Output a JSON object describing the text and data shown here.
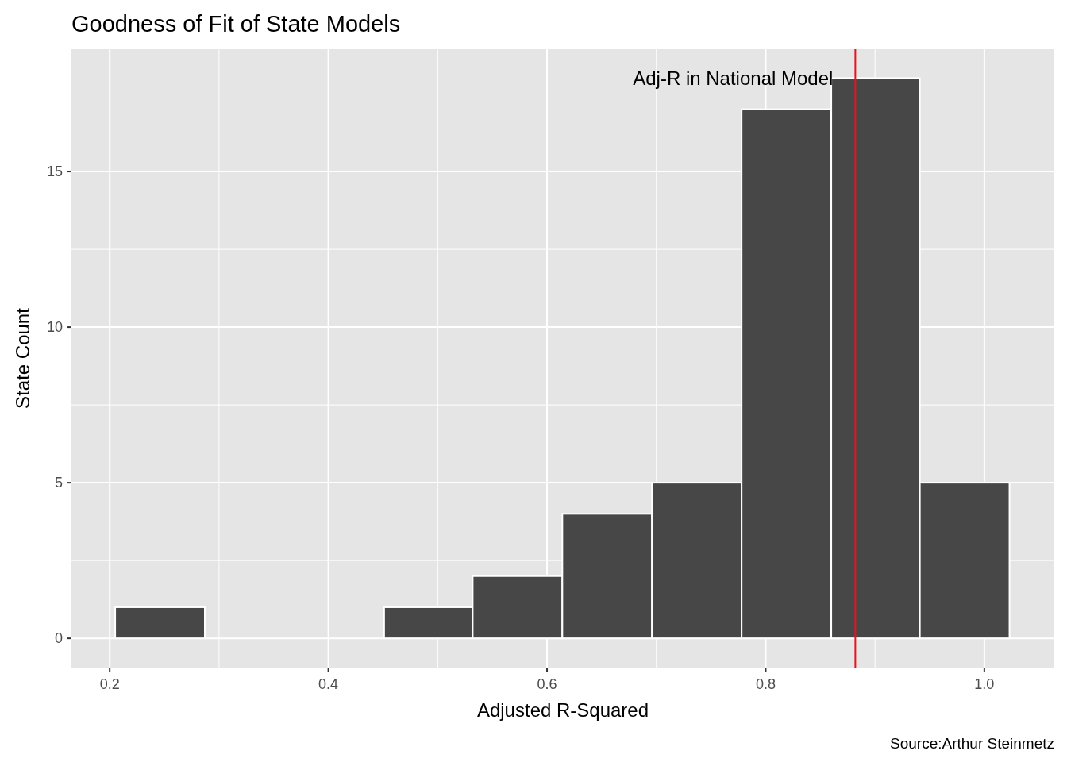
{
  "chart_data": {
    "type": "histogram",
    "title": "Goodness of Fit of State Models",
    "xlabel": "Adjusted R-Squared",
    "ylabel": "State Count",
    "bins": [
      0.205,
      0.287,
      0.451,
      0.532,
      0.614,
      0.696,
      0.778,
      0.86,
      0.941,
      1.023
    ],
    "values": [
      1,
      0,
      1,
      2,
      4,
      5,
      17,
      18,
      5
    ],
    "color": "#474747",
    "xlim": [
      0.165,
      1.064
    ],
    "ylim": [
      -0.94,
      18.93
    ],
    "xticks": [
      {
        "value": 0.2,
        "label": "0.2"
      },
      {
        "value": 0.4,
        "label": "0.4"
      },
      {
        "value": 0.6,
        "label": "0.6"
      },
      {
        "value": 0.8,
        "label": "0.8"
      },
      {
        "value": 1.0,
        "label": "1.0"
      }
    ],
    "yticks": [
      0,
      5,
      10,
      15
    ],
    "grid": true,
    "ref_lines": [
      {
        "axis": "x",
        "value": 0.882,
        "label": "Adj-R in National Model",
        "color": "#e8141c"
      }
    ],
    "annotations": [
      "Source:Arthur Steinmetz"
    ]
  }
}
